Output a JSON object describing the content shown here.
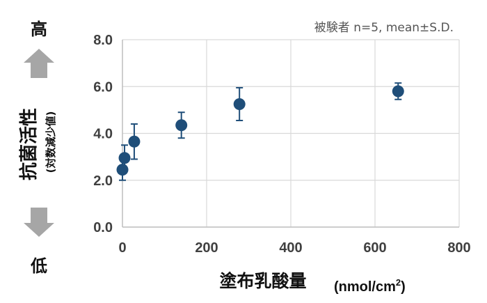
{
  "chart_data": {
    "type": "scatter",
    "annotation": "被験者 n=5, mean±S.D.",
    "xlabel": "塗布乳酸量",
    "xunit_prefix": "(nmol/cm",
    "xunit_sup": "2",
    "xunit_suffix": ")",
    "ylabel": "抗菌活性",
    "ylabel_sub": "(対数減少値)",
    "y_high_label": "高",
    "y_low_label": "低",
    "xlim": [
      0,
      800
    ],
    "ylim": [
      0,
      8
    ],
    "x_ticks": [
      0,
      200,
      400,
      600,
      800
    ],
    "x_tick_labels": [
      "0",
      "200",
      "400",
      "600",
      "800"
    ],
    "y_ticks": [
      0,
      2,
      4,
      6,
      8
    ],
    "y_tick_labels": [
      "0.0",
      "2.0",
      "4.0",
      "6.0",
      "8.0"
    ],
    "grid": true,
    "marker_color": "#1f4e79",
    "arrow_color": "#a6a6a6",
    "points": [
      {
        "x": 0,
        "y": 2.45,
        "sd": 0.45
      },
      {
        "x": 5,
        "y": 2.95,
        "sd": 0.55
      },
      {
        "x": 28,
        "y": 3.65,
        "sd": 0.75
      },
      {
        "x": 140,
        "y": 4.35,
        "sd": 0.55
      },
      {
        "x": 278,
        "y": 5.25,
        "sd": 0.7
      },
      {
        "x": 655,
        "y": 5.8,
        "sd": 0.35
      }
    ]
  }
}
